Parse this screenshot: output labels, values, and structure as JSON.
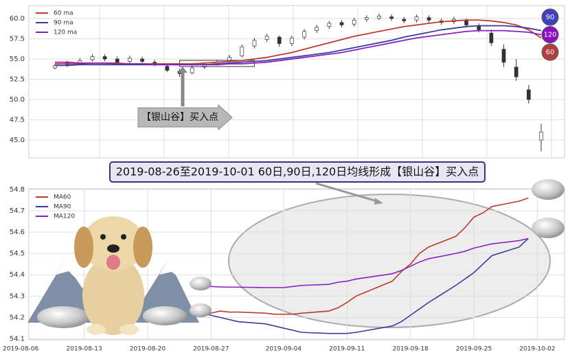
{
  "chart_data": [
    {
      "type": "candlestick",
      "annotation": "【银山谷】买入点",
      "up_color": "#ffffff",
      "down_color": "#333333",
      "open": [
        53.9,
        54.3,
        54.5,
        54.9,
        55.3,
        55.0,
        54.7,
        55.0,
        54.6,
        54.1,
        53.5,
        53.3,
        54.0,
        54.4,
        54.7,
        55.4,
        56.6,
        57.4,
        57.7,
        56.9,
        57.7,
        58.5,
        59.0,
        59.5,
        59.3,
        59.9,
        60.0,
        60.2,
        59.9,
        59.8,
        60.1,
        59.7,
        59.6,
        59.7,
        59.1,
        58.2,
        56.2,
        54.0,
        51.2,
        45.0
      ],
      "high": [
        54.4,
        54.8,
        55.1,
        55.6,
        55.6,
        55.3,
        55.4,
        55.3,
        54.9,
        54.4,
        53.8,
        54.2,
        54.6,
        54.9,
        55.5,
        56.8,
        57.6,
        58.1,
        57.9,
        57.9,
        58.7,
        59.2,
        59.7,
        59.8,
        60.1,
        60.4,
        60.6,
        60.5,
        60.2,
        60.5,
        60.4,
        60.0,
        60.2,
        60.0,
        59.4,
        58.6,
        56.8,
        55.0,
        51.8,
        47.0
      ],
      "low": [
        53.7,
        54.0,
        54.3,
        54.7,
        54.7,
        54.3,
        54.5,
        54.5,
        54.1,
        53.4,
        52.8,
        53.1,
        53.8,
        54.2,
        54.5,
        55.2,
        56.3,
        57.1,
        56.5,
        56.6,
        57.4,
        58.2,
        58.7,
        58.9,
        59.0,
        59.6,
        59.8,
        59.7,
        59.4,
        59.5,
        59.5,
        59.2,
        59.3,
        58.9,
        58.3,
        56.6,
        54.0,
        52.3,
        49.5,
        43.6
      ],
      "close": [
        54.2,
        54.5,
        54.8,
        55.3,
        55.0,
        54.6,
        55.1,
        54.7,
        54.3,
        53.6,
        53.2,
        53.9,
        54.3,
        54.6,
        55.2,
        56.5,
        57.3,
        57.8,
        56.9,
        57.6,
        58.4,
        58.9,
        59.4,
        59.2,
        59.8,
        60.1,
        60.3,
        60.0,
        59.7,
        60.2,
        59.8,
        59.5,
        59.9,
        59.2,
        58.6,
        57.0,
        54.6,
        52.8,
        50.0,
        46.0
      ],
      "series": [
        {
          "name": "60 ma",
          "color": "#c0392b",
          "values": [
            54.4,
            54.4,
            54.4,
            54.5,
            54.5,
            54.5,
            54.4,
            54.4,
            54.4,
            54.4,
            54.4,
            54.4,
            54.5,
            54.6,
            54.7,
            54.8,
            55.0,
            55.2,
            55.5,
            55.8,
            56.2,
            56.6,
            57.0,
            57.4,
            57.8,
            58.1,
            58.4,
            58.7,
            59.0,
            59.2,
            59.4,
            59.6,
            59.7,
            59.8,
            59.8,
            59.7,
            59.5,
            59.2,
            58.6,
            57.6
          ]
        },
        {
          "name": "90 ma",
          "color": "#3a3aa0",
          "values": [
            54.2,
            54.2,
            54.3,
            54.3,
            54.3,
            54.3,
            54.3,
            54.3,
            54.3,
            54.3,
            54.3,
            54.3,
            54.3,
            54.4,
            54.5,
            54.6,
            54.7,
            54.8,
            55.0,
            55.2,
            55.4,
            55.6,
            55.8,
            56.1,
            56.4,
            56.7,
            57.0,
            57.3,
            57.7,
            58.0,
            58.3,
            58.6,
            58.8,
            59.0,
            59.1,
            59.1,
            59.1,
            59.0,
            58.8,
            58.5
          ]
        },
        {
          "name": "120 ma",
          "color": "#8a1fc0",
          "values": [
            54.6,
            54.6,
            54.5,
            54.5,
            54.5,
            54.4,
            54.4,
            54.4,
            54.3,
            54.3,
            54.3,
            54.3,
            54.3,
            54.3,
            54.4,
            54.4,
            54.5,
            54.6,
            54.8,
            55.0,
            55.2,
            55.4,
            55.6,
            55.8,
            56.1,
            56.4,
            56.7,
            57.0,
            57.3,
            57.6,
            57.8,
            58.0,
            58.2,
            58.4,
            58.5,
            58.5,
            58.5,
            58.4,
            58.3,
            58.0
          ]
        }
      ],
      "end_labels": [
        {
          "label": "90",
          "color": "#4040c0"
        },
        {
          "label": "120",
          "color": "#8a10c0"
        },
        {
          "label": "60",
          "color": "#b04040"
        }
      ],
      "highlight": {
        "start": 10,
        "end": 16,
        "ylim": [
          54.07,
          54.83
        ]
      },
      "ylim": [
        42.8,
        61.6
      ],
      "yticks": [
        {
          "value": 45,
          "label": "45.0"
        },
        {
          "value": 47.5,
          "label": "47.5"
        },
        {
          "value": 50,
          "label": "50.0"
        },
        {
          "value": 52.5,
          "label": "52.5"
        },
        {
          "value": 55,
          "label": "55.0"
        },
        {
          "value": 57.5,
          "label": "57.5"
        },
        {
          "value": 60,
          "label": "60.0"
        }
      ],
      "grid": true
    },
    {
      "type": "line",
      "title": "2019-08-26至2019-10-01 60日,90日,120日均线形成【银山谷】买入点",
      "x": [
        "2019-08-26",
        "2019-08-27",
        "2019-08-28",
        "2019-08-29",
        "2019-08-30",
        "2019-09-02",
        "2019-09-03",
        "2019-09-04",
        "2019-09-05",
        "2019-09-06",
        "2019-09-09",
        "2019-09-10",
        "2019-09-11",
        "2019-09-12",
        "2019-09-16",
        "2019-09-17",
        "2019-09-18",
        "2019-09-19",
        "2019-09-20",
        "2019-09-23",
        "2019-09-24",
        "2019-09-25",
        "2019-09-26",
        "2019-09-27",
        "2019-09-30",
        "2019-10-01"
      ],
      "series": [
        {
          "name": "MA60",
          "color": "#c0392b",
          "values": [
            54.205,
            54.22,
            54.23,
            54.225,
            54.225,
            54.22,
            54.215,
            54.215,
            54.215,
            54.22,
            54.23,
            54.245,
            54.27,
            54.3,
            54.37,
            54.415,
            54.45,
            54.5,
            54.53,
            54.58,
            54.62,
            54.67,
            54.69,
            54.72,
            54.745,
            54.76
          ]
        },
        {
          "name": "MA90",
          "color": "#3a3aa0",
          "values": [
            54.22,
            54.21,
            54.2,
            54.19,
            54.18,
            54.17,
            54.16,
            54.15,
            54.14,
            54.13,
            54.125,
            54.125,
            54.125,
            54.13,
            54.16,
            54.18,
            54.21,
            54.24,
            54.27,
            54.35,
            54.38,
            54.41,
            54.45,
            54.49,
            54.53,
            54.57
          ]
        },
        {
          "name": "MA120",
          "color": "#8a1fc0",
          "values": [
            54.345,
            54.345,
            54.343,
            54.342,
            54.342,
            54.34,
            54.34,
            54.34,
            54.345,
            54.35,
            54.355,
            54.365,
            54.37,
            54.38,
            54.405,
            54.42,
            54.44,
            54.46,
            54.475,
            54.5,
            54.51,
            54.525,
            54.535,
            54.545,
            54.56,
            54.57
          ]
        }
      ],
      "xlim": [
        "2019-08-05",
        "2019-10-05"
      ],
      "xticks": [
        "2019-08-06",
        "2019-08-13",
        "2019-08-20",
        "2019-08-27",
        "2019-09-04",
        "2019-09-11",
        "2019-09-18",
        "2019-09-25",
        "2019-10-02"
      ],
      "ylim": [
        54.095,
        54.803
      ],
      "yticks": [
        54.1,
        54.2,
        54.3,
        54.4,
        54.5,
        54.6,
        54.7,
        54.8
      ],
      "grid": true
    }
  ]
}
